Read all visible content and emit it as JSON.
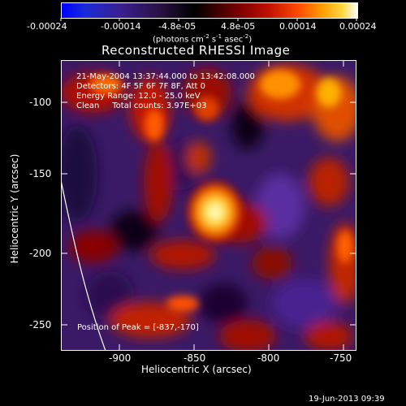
{
  "colorbar": {
    "tick_labels": [
      "-0.00024",
      "-0.00014",
      "-4.8e-05",
      "4.8e-05",
      "0.00014",
      "0.00024"
    ],
    "units_prefix": "(photons cm",
    "units_exp1": "-2",
    "units_mid": " s",
    "units_exp2": "-1",
    "units_mid2": " asec",
    "units_exp3": "-2",
    "units_suffix": ")"
  },
  "image": {
    "title": "Reconstructed RHESSI Image",
    "info_lines": [
      "21-May-2004 13:37:44.000 to 13:42:08.000",
      "Detectors: 4F 5F 6F 7F 8F, Att 0",
      "Energy Range: 12.0 - 25.0 keV",
      "Clean     Total counts: 3.97E+03"
    ],
    "peak_label": "Position of Peak = [-837,-170]",
    "peak_x": -837,
    "peak_y": -170
  },
  "axes": {
    "xlabel": "Heliocentric X (arcsec)",
    "ylabel": "Heliocentric Y (arcsec)",
    "x_range": [
      -940,
      -745
    ],
    "y_range": [
      -265,
      -70
    ],
    "x_ticks": [
      "-900",
      "-850",
      "-800",
      "-750"
    ],
    "x_tick_values": [
      -900,
      -850,
      -800,
      -750
    ],
    "y_ticks": [
      "-100",
      "-150",
      "-200",
      "-250"
    ],
    "y_tick_values": [
      -100,
      -150,
      -200,
      -250
    ]
  },
  "timestamp": "19-Jun-2013 09:39",
  "colors": {
    "background": "#000000",
    "limb": "#ffffff"
  }
}
